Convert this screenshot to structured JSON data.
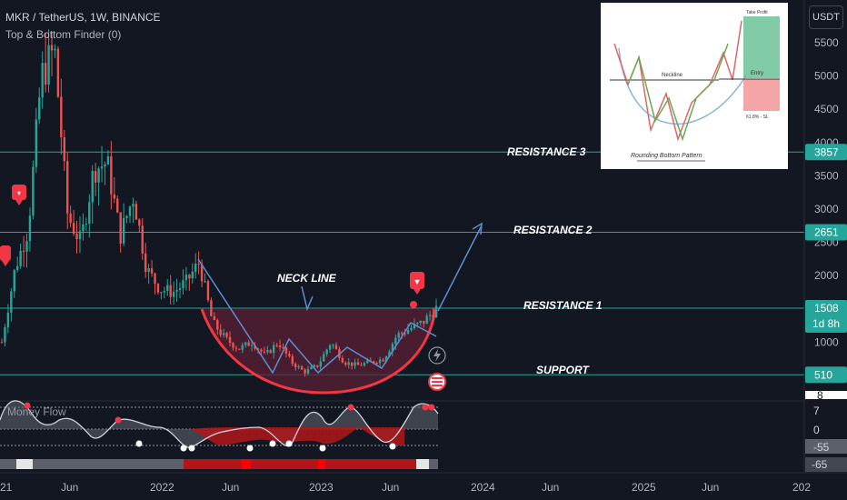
{
  "header": {
    "symbol_line": "MKR / TetherUS, 1W, BINANCE",
    "indicator_line": "Top & Bottom Finder (0)",
    "currency_button": "USDT"
  },
  "colors": {
    "background": "#131722",
    "up": "#26a69a",
    "down": "#ef5350",
    "level_line": "#26a69a",
    "cup_fill": "#5c2035",
    "cup_stroke": "#f23645",
    "axis_text": "#b2b5be",
    "marker": "#f23645",
    "histogram_red": "#b2161a",
    "histogram_grey": "#5d606b",
    "histogram_white": "#e6e6e6"
  },
  "chart_data": [
    {
      "type": "candlestick",
      "title": "MKR / TetherUS, 1W, BINANCE",
      "x_tick_labels": [
        "21",
        "Jun",
        "2022",
        "Jun",
        "2023",
        "Jun",
        "2024",
        "Jun",
        "2025",
        "Jun",
        "202"
      ],
      "y_ticks": [
        1000,
        1500,
        2000,
        2500,
        3000,
        3500,
        4000,
        4500,
        5000,
        5500
      ],
      "ylim": [
        200,
        6200
      ],
      "grid": false,
      "price_series_approx": [
        [
          "2021-02",
          1000
        ],
        [
          "2021-03",
          2100
        ],
        [
          "2021-04",
          2700
        ],
        [
          "2021-05",
          5000
        ],
        [
          "2021-05-10",
          5400
        ],
        [
          "2021-06",
          2900
        ],
        [
          "2021-07",
          2500
        ],
        [
          "2021-08",
          3600
        ],
        [
          "2021-09",
          3700
        ],
        [
          "2021-10",
          2600
        ],
        [
          "2021-11",
          3200
        ],
        [
          "2021-12",
          2100
        ],
        [
          "2022-01",
          1800
        ],
        [
          "2022-02",
          1750
        ],
        [
          "2022-03",
          1900
        ],
        [
          "2022-04",
          2200
        ],
        [
          "2022-05",
          1300
        ],
        [
          "2022-06",
          1050
        ],
        [
          "2022-07",
          900
        ],
        [
          "2022-08",
          1000
        ],
        [
          "2022-09",
          800
        ],
        [
          "2022-10",
          1000
        ],
        [
          "2022-11",
          700
        ],
        [
          "2022-12",
          550
        ],
        [
          "2023-01",
          650
        ],
        [
          "2023-02",
          1000
        ],
        [
          "2023-03",
          700
        ],
        [
          "2023-04",
          650
        ],
        [
          "2023-05",
          700
        ],
        [
          "2023-06",
          750
        ],
        [
          "2023-07",
          1100
        ],
        [
          "2023-08",
          1200
        ],
        [
          "2023-09",
          1300
        ],
        [
          "2023-10",
          1508
        ]
      ],
      "levels": [
        {
          "label": "RESISTANCE 3",
          "price": "3857",
          "value": 3857
        },
        {
          "label": "RESISTANCE 2",
          "price": "2651",
          "value": 2651
        },
        {
          "label": "RESISTANCE 1",
          "price": "1511",
          "value": 1511
        },
        {
          "label": "SUPPORT",
          "price": "510",
          "value": 510
        }
      ],
      "current_price": {
        "value": "1508",
        "countdown": "1d 8h"
      },
      "annotations": {
        "neckline": "NECK LINE"
      }
    },
    {
      "type": "line",
      "title": "Money Flow",
      "y_tick_labels": [
        "7",
        "0",
        "-55",
        "-65"
      ],
      "partial_top_label": "8"
    }
  ],
  "inset_image": {
    "take_profit": "Take Profit",
    "neckline": "Neckline",
    "entry": "Entry",
    "stop": "61.8% - SL",
    "caption": "Rounding Bottom Pattern"
  }
}
